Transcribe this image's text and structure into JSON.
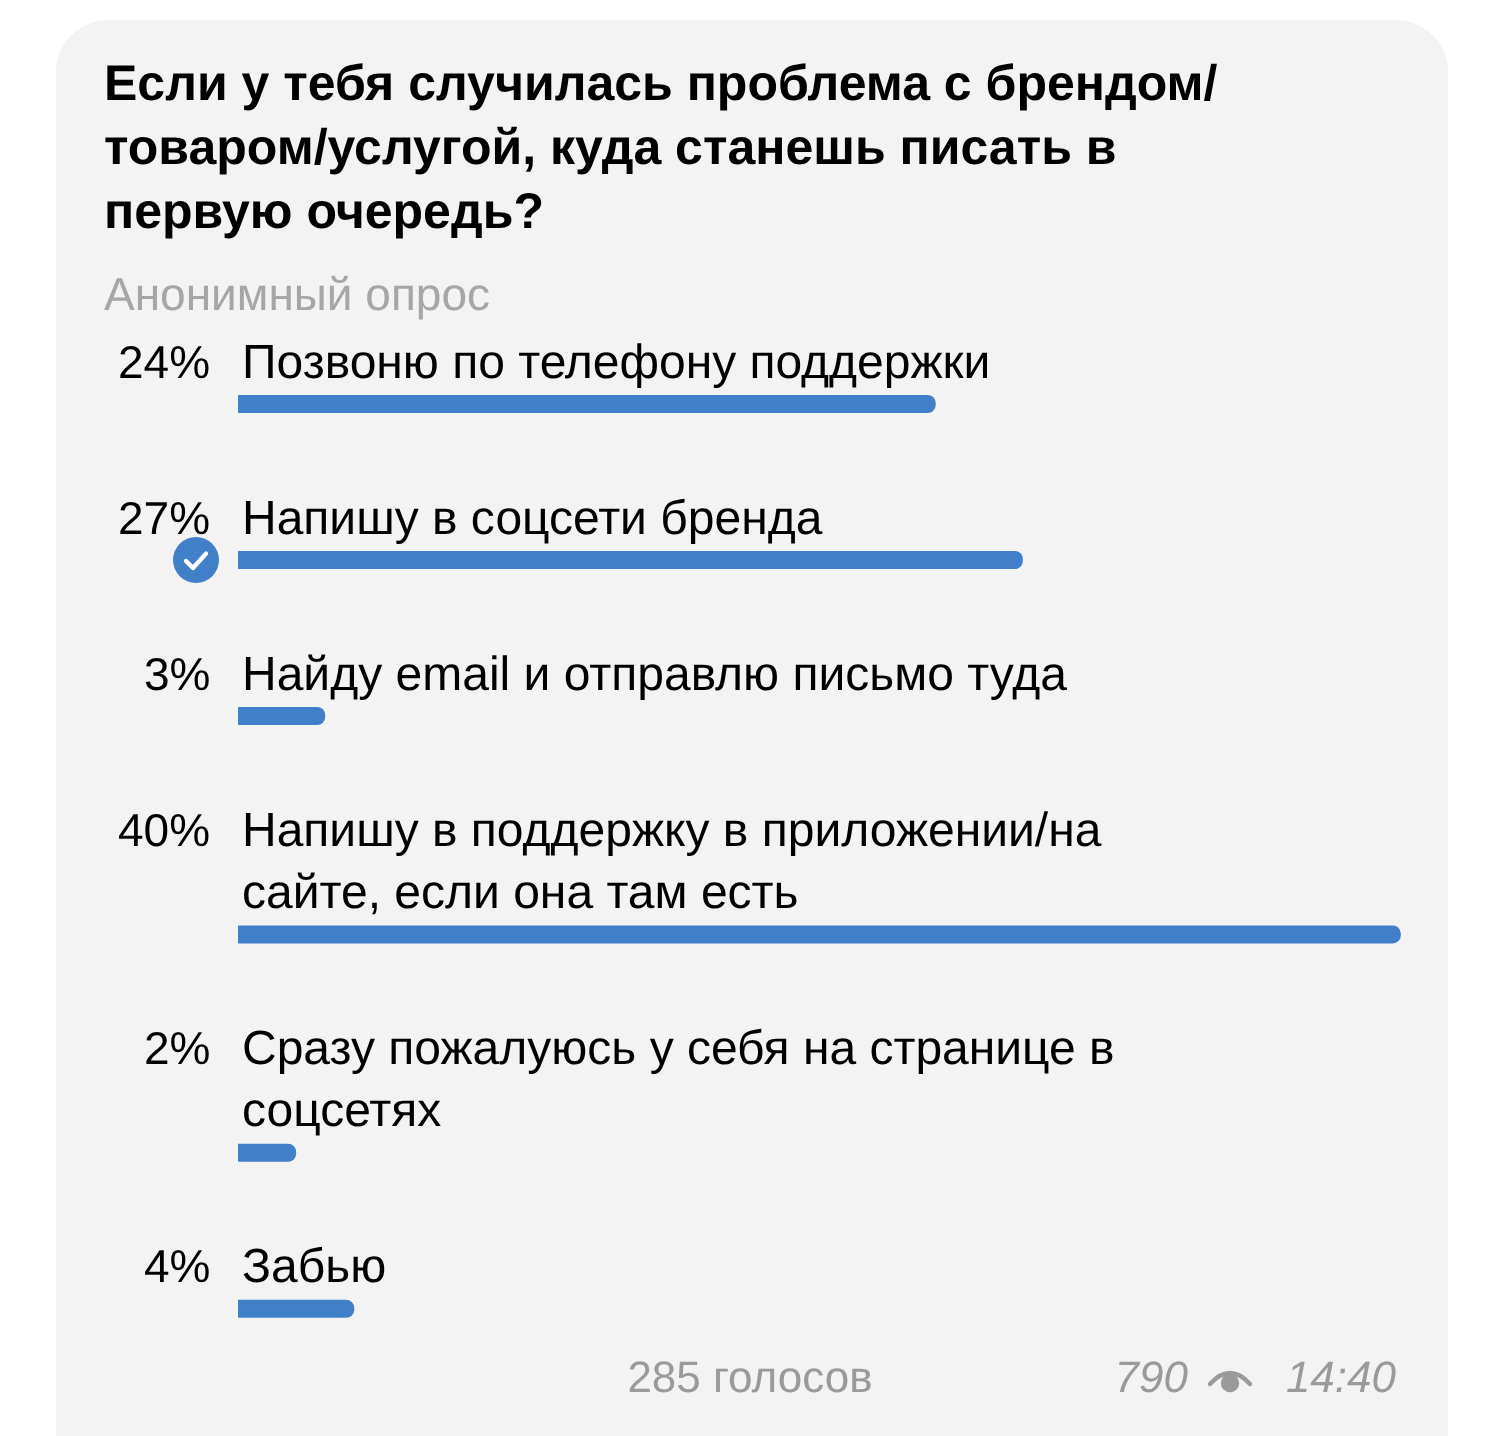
{
  "chart_data": {
    "type": "bar",
    "orientation": "horizontal",
    "title": "Если у тебя случилась проблема с брендом/товаром/услугой, куда станешь писать в первую очередь?",
    "subtitle": "Анонимный опрос",
    "categories": [
      "Позвоню по телефону поддержки",
      "Напишу в соцсети бренда",
      "Найду email и отправлю письмо туда",
      "Напишу в поддержку в приложении/на сайте, если она там есть",
      "Сразу пожалуюсь у себя на странице в соцсетях",
      "Забью"
    ],
    "values": [
      24,
      27,
      3,
      40,
      2,
      4
    ],
    "value_labels": [
      "24%",
      "27%",
      "3%",
      "40%",
      "2%",
      "4%"
    ],
    "color": "#3f80c8",
    "tick_labels": "y",
    "annotations": [
      "285 голосов",
      "790",
      "14:40"
    ]
  }
}
